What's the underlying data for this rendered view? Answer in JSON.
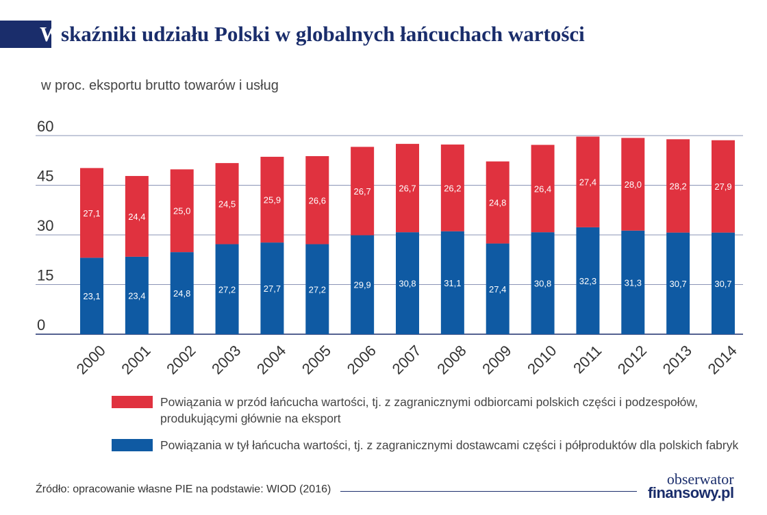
{
  "header": {
    "title_first": "W",
    "title_rest": "skaźniki udziału Polski w globalnych łańcuchach wartości",
    "subtitle": "w proc. eksportu brutto towarów i usług"
  },
  "colors": {
    "forward": "#e0323f",
    "backward": "#0f5aa3",
    "brand": "#1a2d6b"
  },
  "chart_data": {
    "type": "bar",
    "stacked": true,
    "categories": [
      "2000",
      "2001",
      "2002",
      "2003",
      "2004",
      "2005",
      "2006",
      "2007",
      "2008",
      "2009",
      "2010",
      "2011",
      "2012",
      "2013",
      "2014"
    ],
    "series": [
      {
        "name": "Powiązania w tył łańcucha wartości, tj. z zagranicznymi dostawcami części i półproduktów dla polskich fabryk",
        "color": "#0f5aa3",
        "values": [
          23.1,
          23.4,
          24.8,
          27.2,
          27.7,
          27.2,
          29.9,
          30.8,
          31.1,
          27.4,
          30.8,
          32.3,
          31.3,
          30.7,
          30.7
        ],
        "labels": [
          "23,1",
          "23,4",
          "24,8",
          "27,2",
          "27,7",
          "27,2",
          "29,9",
          "30,8",
          "31,1",
          "27,4",
          "30,8",
          "32,3",
          "31,3",
          "30,7",
          "30,7"
        ]
      },
      {
        "name": "Powiązania w przód łańcucha wartości, tj. z zagranicznymi odbiorcami polskich części i podzespołów, produkującymi głównie na eksport",
        "color": "#e0323f",
        "values": [
          27.1,
          24.4,
          25.0,
          24.5,
          25.9,
          26.6,
          26.7,
          26.7,
          26.2,
          24.8,
          26.4,
          27.4,
          28.0,
          28.2,
          27.9
        ],
        "labels": [
          "27,1",
          "24,4",
          "25,0",
          "24,5",
          "25,9",
          "26,6",
          "26,7",
          "26,7",
          "26,2",
          "24,8",
          "26,4",
          "27,4",
          "28,0",
          "28,2",
          "27,9"
        ]
      }
    ],
    "yticks": [
      0,
      15,
      30,
      45,
      60
    ],
    "ytick_labels": [
      "0",
      "15",
      "30",
      "45",
      "60"
    ],
    "ylim": [
      0,
      60
    ],
    "grid": true
  },
  "legend": {
    "forward_text": "Powiązania w przód łańcucha wartości, tj. z zagranicznymi odbiorcami polskich części i podzespołów, produkującymi głównie na eksport",
    "backward_text": "Powiązania w tył łańcucha wartości, tj. z zagranicznymi dostawcami części i półproduktów dla polskich fabryk"
  },
  "footer": {
    "source": "Źródło: opracowanie własne PIE na podstawie: WIOD (2016)",
    "logo_top": "obserwator",
    "logo_bottom": "finansowy.pl"
  }
}
